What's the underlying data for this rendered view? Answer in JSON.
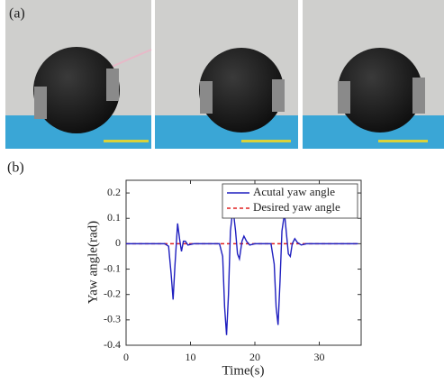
{
  "panels": {
    "a": "(a)",
    "b": "(b)"
  },
  "chart_data": {
    "type": "line",
    "xlabel": "Time(s)",
    "ylabel": "Yaw angle(rad)",
    "xlim": [
      0,
      36.5
    ],
    "ylim": [
      -0.4,
      0.25
    ],
    "xticks": [
      0,
      10,
      20,
      30
    ],
    "yticks": [
      0.2,
      0.1,
      0,
      -0.1,
      -0.2,
      -0.3,
      -0.4
    ],
    "legend": "upper right",
    "x": [
      0,
      6,
      6.6,
      7.0,
      7.3,
      7.6,
      8.0,
      8.3,
      8.6,
      8.9,
      9.2,
      9.6,
      10.5,
      14.5,
      15.0,
      15.3,
      15.6,
      15.9,
      16.2,
      16.6,
      17.0,
      17.3,
      17.6,
      18.0,
      18.3,
      18.7,
      19.2,
      20.0,
      22.5,
      23.0,
      23.3,
      23.6,
      23.9,
      24.2,
      24.6,
      24.9,
      25.2,
      25.5,
      25.8,
      26.2,
      26.6,
      27.2,
      28,
      36
    ],
    "series": [
      {
        "name": "Acutal yaw angle",
        "color": "#1f1fbf",
        "dash": false,
        "values": [
          0,
          0,
          -0.01,
          -0.12,
          -0.22,
          -0.08,
          0.08,
          0.02,
          -0.03,
          0.01,
          0.01,
          -0.005,
          0,
          0,
          -0.05,
          -0.25,
          -0.36,
          -0.2,
          0.05,
          0.14,
          0.05,
          -0.04,
          -0.06,
          0.01,
          0.03,
          0.01,
          -0.005,
          0,
          0,
          -0.08,
          -0.25,
          -0.32,
          -0.15,
          0.05,
          0.12,
          0.04,
          -0.04,
          -0.05,
          0,
          0.02,
          0.005,
          -0.005,
          0,
          0
        ]
      },
      {
        "name": "Desired yaw angle",
        "color": "#e02020",
        "dash": true,
        "values": [
          0,
          0,
          0,
          0,
          0,
          0,
          0,
          0,
          0,
          0,
          0,
          0,
          0,
          0,
          0,
          0,
          0,
          0,
          0,
          0,
          0,
          0,
          0,
          0,
          0,
          0,
          0,
          0,
          0,
          0,
          0,
          0,
          0,
          0,
          0,
          0,
          0,
          0,
          0,
          0,
          0,
          0,
          0,
          0
        ]
      }
    ]
  }
}
